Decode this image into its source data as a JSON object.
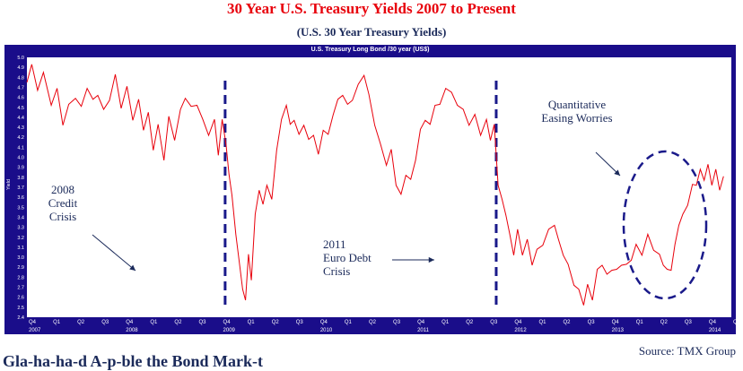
{
  "page": {
    "title": "30 Year U.S. Treasury Yields 2007 to Present",
    "subtitle": "(U.S. 30 Year Treasury Yields)",
    "source": "Source: TMX Group",
    "bottom_text": "Gla-ha-ha-d A-p-ble the Bond Mark-t"
  },
  "chart_data": {
    "type": "line",
    "title": "U.S. Treasury Long Bond /30 year (US$)",
    "ylabel": "Yield",
    "xlabel": "",
    "ylim": [
      2.4,
      5.0
    ],
    "xlim": [
      2006.75,
      2014.0
    ],
    "y_ticks": [
      "2.4",
      "2.5",
      "2.6",
      "2.7",
      "2.8",
      "2.9",
      "3.0",
      "3.1",
      "3.2",
      "3.3",
      "3.4",
      "3.5",
      "3.6",
      "3.7",
      "3.8",
      "3.9",
      "4.0",
      "4.1",
      "4.2",
      "4.3",
      "4.4",
      "4.5",
      "4.6",
      "4.7",
      "4.8",
      "4.9",
      "5.0"
    ],
    "x_quarter_ticks": [
      "Q4",
      "Q1",
      "Q2",
      "Q3",
      "Q4",
      "Q1",
      "Q2",
      "Q3",
      "Q4",
      "Q1",
      "Q2",
      "Q3",
      "Q4",
      "Q1",
      "Q2",
      "Q3",
      "Q4",
      "Q1",
      "Q2",
      "Q3",
      "Q4",
      "Q1",
      "Q2",
      "Q3",
      "Q4",
      "Q1",
      "Q2",
      "Q3",
      "Q4",
      "Q1"
    ],
    "x_year_labels": [
      "2007",
      "2008",
      "2009",
      "2010",
      "2011",
      "2012",
      "2013",
      "2014"
    ],
    "series": [
      {
        "name": "",
        "color": "#e8000b",
        "points": [
          [
            2006.75,
            4.78
          ],
          [
            2006.8,
            4.9
          ],
          [
            2006.86,
            4.7
          ],
          [
            2006.92,
            4.82
          ],
          [
            2007.0,
            4.55
          ],
          [
            2007.06,
            4.66
          ],
          [
            2007.12,
            4.35
          ],
          [
            2007.18,
            4.5
          ],
          [
            2007.25,
            4.62
          ],
          [
            2007.31,
            4.48
          ],
          [
            2007.37,
            4.72
          ],
          [
            2007.43,
            4.55
          ],
          [
            2007.48,
            4.65
          ],
          [
            2007.54,
            4.45
          ],
          [
            2007.6,
            4.6
          ],
          [
            2007.66,
            4.8
          ],
          [
            2007.72,
            4.52
          ],
          [
            2007.78,
            4.68
          ],
          [
            2007.84,
            4.4
          ],
          [
            2007.9,
            4.55
          ],
          [
            2007.95,
            4.3
          ],
          [
            2008.0,
            4.42
          ],
          [
            2008.05,
            4.1
          ],
          [
            2008.1,
            4.3
          ],
          [
            2008.16,
            4.0
          ],
          [
            2008.21,
            4.38
          ],
          [
            2008.27,
            4.2
          ],
          [
            2008.33,
            4.45
          ],
          [
            2008.38,
            4.62
          ],
          [
            2008.44,
            4.48
          ],
          [
            2008.5,
            4.55
          ],
          [
            2008.56,
            4.35
          ],
          [
            2008.62,
            4.25
          ],
          [
            2008.68,
            4.35
          ],
          [
            2008.72,
            4.05
          ],
          [
            2008.76,
            4.35
          ],
          [
            2008.8,
            4.15
          ],
          [
            2008.83,
            3.8
          ],
          [
            2008.86,
            3.65
          ],
          [
            2008.9,
            3.2
          ],
          [
            2008.94,
            2.95
          ],
          [
            2008.97,
            2.65
          ],
          [
            2009.0,
            2.6
          ],
          [
            2009.03,
            3.0
          ],
          [
            2009.06,
            2.8
          ],
          [
            2009.1,
            3.4
          ],
          [
            2009.14,
            3.7
          ],
          [
            2009.18,
            3.5
          ],
          [
            2009.22,
            3.75
          ],
          [
            2009.27,
            3.55
          ],
          [
            2009.32,
            4.1
          ],
          [
            2009.37,
            4.35
          ],
          [
            2009.42,
            4.55
          ],
          [
            2009.46,
            4.3
          ],
          [
            2009.5,
            4.4
          ],
          [
            2009.55,
            4.2
          ],
          [
            2009.6,
            4.35
          ],
          [
            2009.65,
            4.15
          ],
          [
            2009.7,
            4.25
          ],
          [
            2009.75,
            4.0
          ],
          [
            2009.8,
            4.3
          ],
          [
            2009.85,
            4.2
          ],
          [
            2009.9,
            4.45
          ],
          [
            2009.95,
            4.55
          ],
          [
            2010.0,
            4.65
          ],
          [
            2010.05,
            4.5
          ],
          [
            2010.1,
            4.6
          ],
          [
            2010.16,
            4.7
          ],
          [
            2010.22,
            4.85
          ],
          [
            2010.27,
            4.6
          ],
          [
            2010.33,
            4.35
          ],
          [
            2010.39,
            4.1
          ],
          [
            2010.45,
            3.95
          ],
          [
            2010.5,
            4.05
          ],
          [
            2010.55,
            3.75
          ],
          [
            2010.6,
            3.6
          ],
          [
            2010.65,
            3.85
          ],
          [
            2010.7,
            3.75
          ],
          [
            2010.75,
            4.0
          ],
          [
            2010.8,
            4.25
          ],
          [
            2010.85,
            4.4
          ],
          [
            2010.9,
            4.3
          ],
          [
            2010.95,
            4.55
          ],
          [
            2011.0,
            4.5
          ],
          [
            2011.06,
            4.72
          ],
          [
            2011.12,
            4.62
          ],
          [
            2011.18,
            4.55
          ],
          [
            2011.24,
            4.45
          ],
          [
            2011.3,
            4.35
          ],
          [
            2011.36,
            4.4
          ],
          [
            2011.42,
            4.25
          ],
          [
            2011.48,
            4.35
          ],
          [
            2011.52,
            4.2
          ],
          [
            2011.56,
            4.3
          ],
          [
            2011.6,
            3.75
          ],
          [
            2011.64,
            3.55
          ],
          [
            2011.68,
            3.45
          ],
          [
            2011.72,
            3.2
          ],
          [
            2011.76,
            3.05
          ],
          [
            2011.8,
            3.25
          ],
          [
            2011.85,
            3.05
          ],
          [
            2011.9,
            3.15
          ],
          [
            2011.95,
            2.95
          ],
          [
            2012.0,
            3.05
          ],
          [
            2012.06,
            3.15
          ],
          [
            2012.12,
            3.25
          ],
          [
            2012.18,
            3.35
          ],
          [
            2012.22,
            3.15
          ],
          [
            2012.27,
            3.05
          ],
          [
            2012.32,
            2.9
          ],
          [
            2012.38,
            2.75
          ],
          [
            2012.43,
            2.65
          ],
          [
            2012.48,
            2.55
          ],
          [
            2012.52,
            2.7
          ],
          [
            2012.57,
            2.6
          ],
          [
            2012.62,
            2.85
          ],
          [
            2012.67,
            2.95
          ],
          [
            2012.72,
            2.8
          ],
          [
            2012.77,
            2.9
          ],
          [
            2012.82,
            2.85
          ],
          [
            2012.87,
            2.95
          ],
          [
            2012.92,
            2.9
          ],
          [
            2012.97,
            3.0
          ],
          [
            2013.02,
            3.1
          ],
          [
            2013.08,
            3.05
          ],
          [
            2013.14,
            3.2
          ],
          [
            2013.2,
            3.1
          ],
          [
            2013.26,
            3.0
          ],
          [
            2013.3,
            2.95
          ],
          [
            2013.34,
            2.85
          ],
          [
            2013.38,
            2.9
          ],
          [
            2013.42,
            3.1
          ],
          [
            2013.46,
            3.35
          ],
          [
            2013.5,
            3.4
          ],
          [
            2013.55,
            3.55
          ],
          [
            2013.6,
            3.7
          ],
          [
            2013.64,
            3.75
          ],
          [
            2013.68,
            3.85
          ],
          [
            2013.72,
            3.8
          ],
          [
            2013.76,
            3.9
          ],
          [
            2013.8,
            3.75
          ],
          [
            2013.84,
            3.85
          ],
          [
            2013.88,
            3.7
          ],
          [
            2013.92,
            3.78
          ]
        ]
      }
    ],
    "markers": [
      {
        "x": 2008.79,
        "style": "dashed",
        "color": "#1a1a8a"
      },
      {
        "x": 2011.58,
        "style": "dashed",
        "color": "#1a1a8a"
      }
    ],
    "annotations": [
      {
        "lines": [
          "2008",
          "Credit",
          "Crisis"
        ]
      },
      {
        "lines": [
          "2011",
          "Euro Debt",
          "Crisis"
        ]
      },
      {
        "lines": [
          "Quantitative",
          "Easing Worries"
        ]
      }
    ]
  }
}
